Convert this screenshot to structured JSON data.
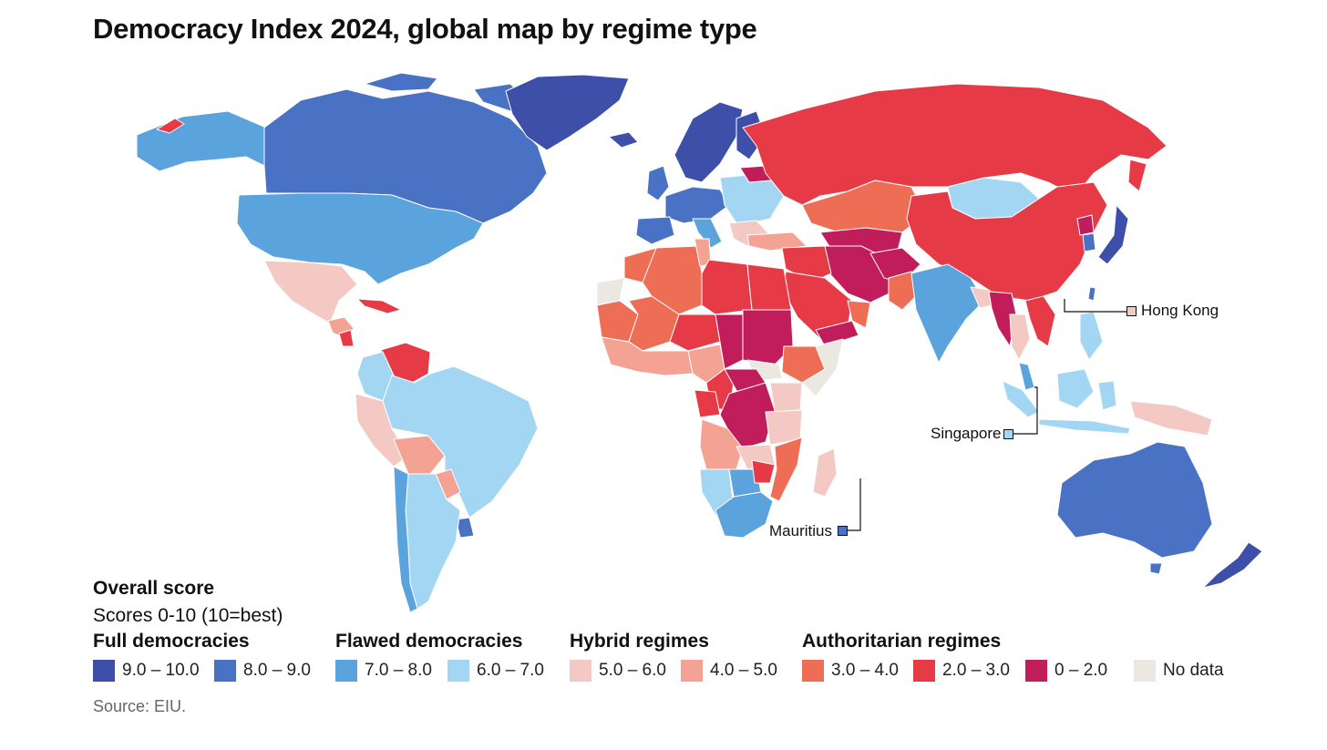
{
  "title": "Democracy Index 2024, global map by regime type",
  "legend": {
    "heading": "Overall score",
    "subheading": "Scores 0-10 (10=best)",
    "groups": [
      {
        "name": "Full democracies",
        "bins": [
          {
            "label": "9.0 – 10.0",
            "color": "#3d4fa8"
          },
          {
            "label": "8.0 – 9.0",
            "color": "#4a72c4"
          }
        ]
      },
      {
        "name": "Flawed democracies",
        "bins": [
          {
            "label": "7.0 – 8.0",
            "color": "#5aa3dc"
          },
          {
            "label": "6.0 – 7.0",
            "color": "#a3d6f2"
          }
        ]
      },
      {
        "name": "Hybrid regimes",
        "bins": [
          {
            "label": "5.0 – 6.0",
            "color": "#f5c9c3"
          },
          {
            "label": "4.0 – 5.0",
            "color": "#f3a294"
          }
        ]
      },
      {
        "name": "Authoritarian regimes",
        "bins": [
          {
            "label": "3.0 – 4.0",
            "color": "#ee6e55"
          },
          {
            "label": "2.0 – 3.0",
            "color": "#e63b46"
          },
          {
            "label": "0 – 2.0",
            "color": "#c11d5a"
          },
          {
            "label": "No data",
            "color": "#ebe8e2"
          }
        ]
      }
    ]
  },
  "callouts": [
    {
      "label": "Hong Kong",
      "color": "#f5c9c3"
    },
    {
      "label": "Singapore",
      "color": "#a3d6f2"
    },
    {
      "label": "Mauritius",
      "color": "#4a72c4"
    }
  ],
  "source": "Source: EIU."
}
